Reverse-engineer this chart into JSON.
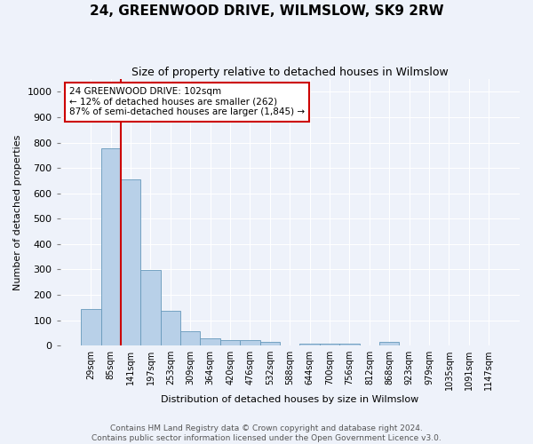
{
  "title": "24, GREENWOOD DRIVE, WILMSLOW, SK9 2RW",
  "subtitle": "Size of property relative to detached houses in Wilmslow",
  "xlabel": "Distribution of detached houses by size in Wilmslow",
  "ylabel": "Number of detached properties",
  "bar_labels": [
    "29sqm",
    "85sqm",
    "141sqm",
    "197sqm",
    "253sqm",
    "309sqm",
    "364sqm",
    "420sqm",
    "476sqm",
    "532sqm",
    "588sqm",
    "644sqm",
    "700sqm",
    "756sqm",
    "812sqm",
    "868sqm",
    "923sqm",
    "979sqm",
    "1035sqm",
    "1091sqm",
    "1147sqm"
  ],
  "bar_values": [
    143,
    778,
    655,
    298,
    138,
    57,
    29,
    21,
    21,
    14,
    0,
    7,
    7,
    7,
    0,
    14,
    0,
    0,
    0,
    0,
    0
  ],
  "bar_color": "#b8d0e8",
  "bar_edge_color": "#6699bb",
  "ylim": [
    0,
    1050
  ],
  "yticks": [
    0,
    100,
    200,
    300,
    400,
    500,
    600,
    700,
    800,
    900,
    1000
  ],
  "property_line_x": 1,
  "property_line_color": "#cc0000",
  "annotation_text": "24 GREENWOOD DRIVE: 102sqm\n← 12% of detached houses are smaller (262)\n87% of semi-detached houses are larger (1,845) →",
  "annotation_box_color": "#cc0000",
  "footer_line1": "Contains HM Land Registry data © Crown copyright and database right 2024.",
  "footer_line2": "Contains public sector information licensed under the Open Government Licence v3.0.",
  "background_color": "#eef2fa",
  "plot_background_color": "#eef2fa",
  "title_fontsize": 11,
  "subtitle_fontsize": 9,
  "ylabel_fontsize": 8,
  "xlabel_fontsize": 8,
  "tick_fontsize": 8,
  "xtick_fontsize": 7,
  "footer_fontsize": 6.5
}
